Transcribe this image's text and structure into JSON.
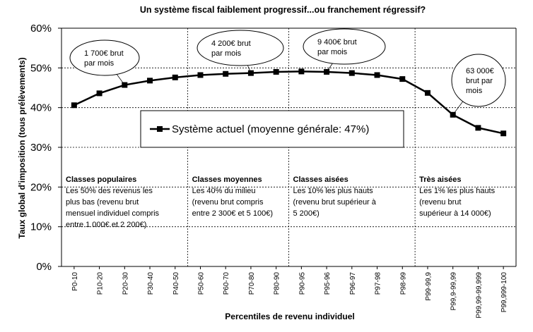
{
  "chart_data": {
    "type": "line",
    "title": "Un système fiscal faiblement progressif...ou franchement régressif?",
    "xlabel": "Percentiles de revenu individuel",
    "ylabel": "Taux global d'imposition (tous prélèvements)",
    "ylim": [
      0,
      60
    ],
    "y_ticks": [
      "0%",
      "10%",
      "20%",
      "30%",
      "40%",
      "50%",
      "60%"
    ],
    "categories": [
      "P0-10",
      "P10-20",
      "P20-30",
      "P30-40",
      "P40-50",
      "P50-60",
      "P60-70",
      "P70-80",
      "P80-90",
      "P90-95",
      "P95-96",
      "P96-97",
      "P97-98",
      "P98-99",
      "P99-99,9",
      "P99,9-99,99",
      "P99,99-99,999",
      "P99,999-100"
    ],
    "series": [
      {
        "name": "Système actuel (moyenne générale: 47%)",
        "values": [
          40.6,
          43.6,
          45.7,
          46.8,
          47.6,
          48.2,
          48.5,
          48.7,
          49.0,
          49.1,
          49.0,
          48.7,
          48.2,
          47.2,
          43.7,
          38.2,
          34.9,
          33.5
        ],
        "color": "#000000"
      }
    ],
    "grid": "dashed horizontal at 10% steps",
    "legend": {
      "label": "Système actuel (moyenne générale: 47%)",
      "placement": "center"
    },
    "regions": [
      {
        "title": "Classes populaires",
        "lines": [
          "Les 50% des revenus les",
          "plus bas (revenu brut",
          "mensuel individuel compris",
          "entre 1 000€ et 2 200€)"
        ]
      },
      {
        "title": "Classes moyennes",
        "lines": [
          "Les 40% du milieu",
          "(revenu brut compris",
          "entre 2 300€ et 5 100€)"
        ]
      },
      {
        "title": "Classes aisées",
        "lines": [
          "Les 10% les plus hauts",
          "(revenu brut supérieur à",
          "5 200€)"
        ]
      },
      {
        "title": "Très aisées",
        "lines": [
          "Les 1% les plus hauts",
          "(revenu brut",
          "supérieur à 14 000€)"
        ]
      }
    ],
    "annotations": [
      {
        "lines": [
          "1 700€ brut",
          "par mois"
        ],
        "points_to": "P20-30"
      },
      {
        "lines": [
          "4 200€ brut",
          "par mois"
        ],
        "points_to": "P70-80"
      },
      {
        "lines": [
          "9 400€ brut",
          "par mois"
        ],
        "points_to": "P95-96"
      },
      {
        "lines": [
          "63 000€",
          "brut par",
          "mois"
        ],
        "points_to": "P99,9-99,99"
      }
    ]
  }
}
